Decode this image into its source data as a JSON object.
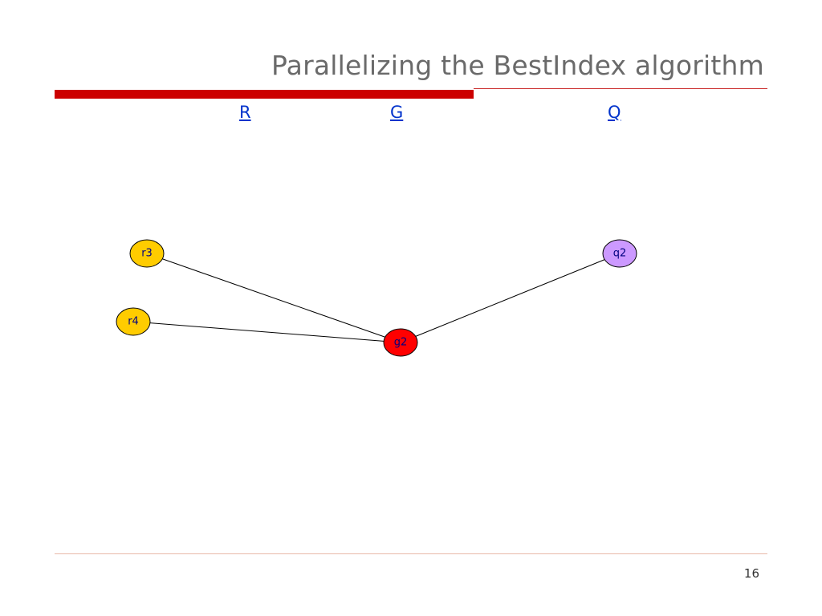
{
  "slide": {
    "title": "Parallelizing the BestIndex algorithm",
    "page_number": "16"
  },
  "columns": {
    "r_label": "R",
    "g_label": "G",
    "q_label": "Q"
  },
  "diagram": {
    "nodes": [
      {
        "id": "r3",
        "label": "r3",
        "fill": "#ffcc00"
      },
      {
        "id": "r4",
        "label": "r4",
        "fill": "#ffcc00"
      },
      {
        "id": "g2",
        "label": "g2",
        "fill": "#ff0000"
      },
      {
        "id": "q2",
        "label": "q2",
        "fill": "#cc99ff"
      }
    ],
    "edges": [
      {
        "from": "r3",
        "to": "g2"
      },
      {
        "from": "r4",
        "to": "g2"
      },
      {
        "from": "q2",
        "to": "g2"
      }
    ]
  },
  "colors": {
    "accent_bar": "#cc0000",
    "link": "#0033cc",
    "title": "#6a6a6a"
  }
}
